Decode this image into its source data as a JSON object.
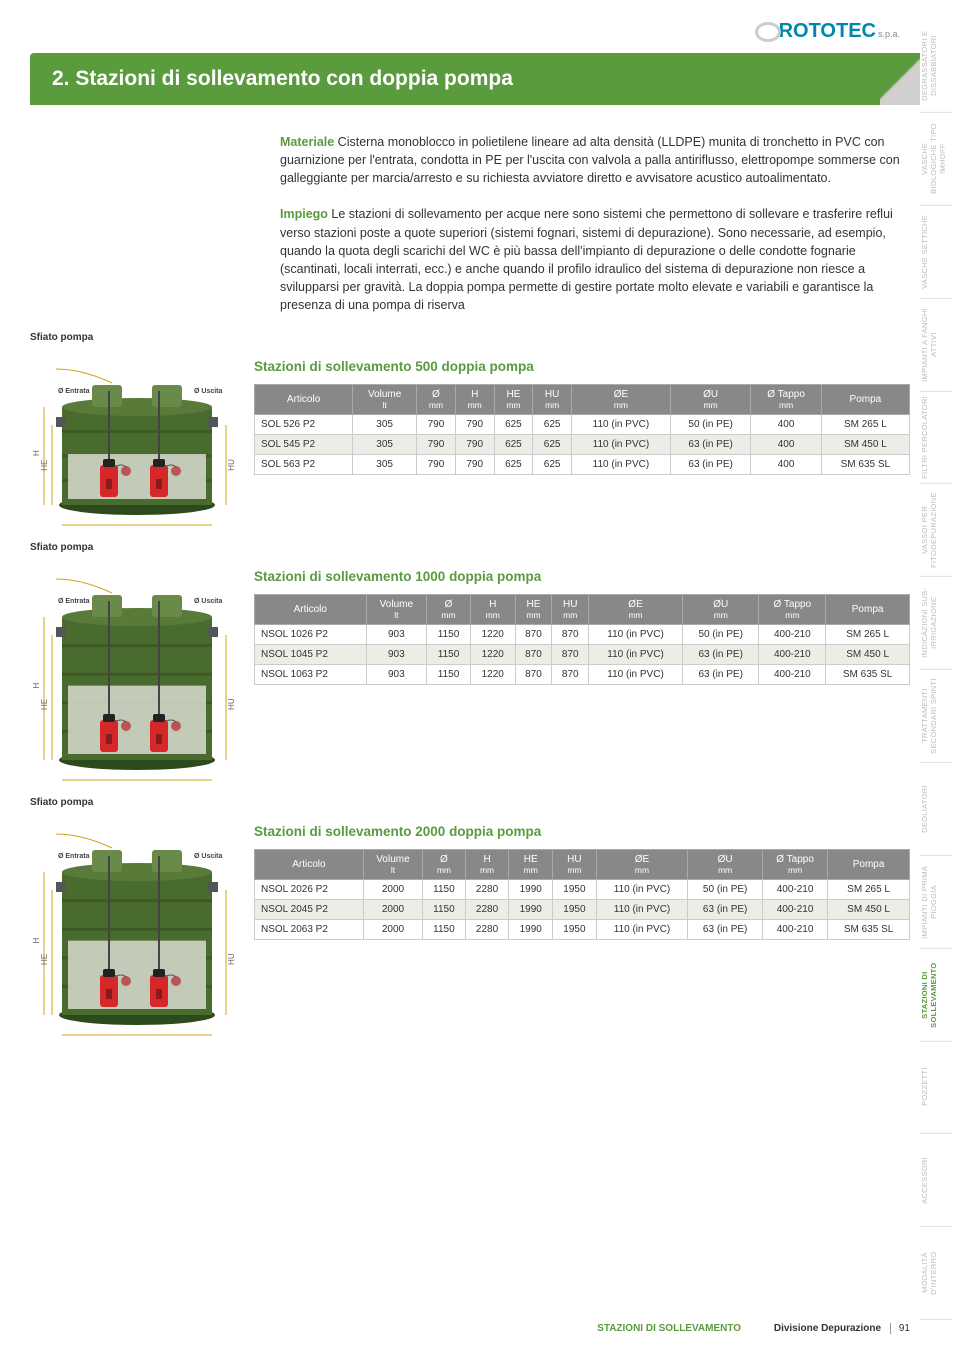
{
  "logo": {
    "brand": "ROTOTEC",
    "suffix": "s.p.a."
  },
  "title": "2. Stazioni di sollevamento con doppia pompa",
  "para1_label": "Materiale",
  "para1": " Cisterna monoblocco in polietilene lineare ad alta densità (LLDPE) munita di tronchetto in PVC con guarnizione per l'entrata, condotta in PE per l'uscita con valvola a palla antiriflusso, elettropompe sommerse con galleggiante per marcia/arresto e su richiesta avviatore diretto e avvisatore acustico autoalimentato.",
  "para2_label": "Impiego",
  "para2": " Le stazioni di sollevamento per acque nere sono sistemi che permettono di sollevare e trasferire reflui verso stazioni poste a quote superiori (sistemi fognari, sistemi di depurazione). Sono necessarie, ad esempio, quando la quota degli scarichi del WC è più bassa dell'impianto di depurazione o delle condotte fognarie (scantinati, locali interrati, ecc.) e anche quando il profilo idraulico del sistema di depurazione non riesce a svilupparsi per gravità. La doppia pompa permette di gestire portate molto elevate e variabili e garantisce la presenza di una pompa di riserva",
  "sfiato_label": "Sfiato pompa",
  "diagram_labels": {
    "entrata": "Ø\nEntrata",
    "uscita": "Ø\nUscita",
    "h": "H",
    "he": "HE",
    "hu": "HU",
    "o": "Ø"
  },
  "columns": [
    {
      "h": "Articolo",
      "s": ""
    },
    {
      "h": "Volume",
      "s": "lt"
    },
    {
      "h": "Ø",
      "s": "mm"
    },
    {
      "h": "H",
      "s": "mm"
    },
    {
      "h": "HE",
      "s": "mm"
    },
    {
      "h": "HU",
      "s": "mm"
    },
    {
      "h": "ØE",
      "s": "mm"
    },
    {
      "h": "ØU",
      "s": "mm"
    },
    {
      "h": "Ø Tappo",
      "s": "mm"
    },
    {
      "h": "Pompa",
      "s": ""
    }
  ],
  "tables": [
    {
      "title": "Stazioni di sollevamento 500 doppia pompa",
      "aspect": 0.65,
      "rows": [
        [
          "SOL 526 P2",
          "305",
          "790",
          "790",
          "625",
          "625",
          "110 (in PVC)",
          "50 (in PE)",
          "400",
          "SM 265 L"
        ],
        [
          "SOL 545 P2",
          "305",
          "790",
          "790",
          "625",
          "625",
          "110 (in PVC)",
          "63 (in PE)",
          "400",
          "SM 450 L"
        ],
        [
          "SOL 563 P2",
          "305",
          "790",
          "790",
          "625",
          "625",
          "110 (in PVC)",
          "63 (in PE)",
          "400",
          "SM 635 SL"
        ]
      ]
    },
    {
      "title": "Stazioni di sollevamento 1000 doppia pompa",
      "aspect": 0.95,
      "rows": [
        [
          "NSOL 1026 P2",
          "903",
          "1150",
          "1220",
          "870",
          "870",
          "110 (in PVC)",
          "50 (in PE)",
          "400-210",
          "SM 265 L"
        ],
        [
          "NSOL 1045 P2",
          "903",
          "1150",
          "1220",
          "870",
          "870",
          "110 (in PVC)",
          "63 (in PE)",
          "400-210",
          "SM 450 L"
        ],
        [
          "NSOL 1063 P2",
          "903",
          "1150",
          "1220",
          "870",
          "870",
          "110 (in PVC)",
          "63 (in PE)",
          "400-210",
          "SM 635 SL"
        ]
      ]
    },
    {
      "title": "Stazioni di sollevamento 2000 doppia pompa",
      "aspect": 0.95,
      "rows": [
        [
          "NSOL 2026 P2",
          "2000",
          "1150",
          "2280",
          "1990",
          "1950",
          "110 (in PVC)",
          "50 (in PE)",
          "400-210",
          "SM 265 L"
        ],
        [
          "NSOL 2045 P2",
          "2000",
          "1150",
          "2280",
          "1990",
          "1950",
          "110 (in PVC)",
          "63 (in PE)",
          "400-210",
          "SM 450 L"
        ],
        [
          "NSOL 2063 P2",
          "2000",
          "1150",
          "2280",
          "1990",
          "1950",
          "110 (in PVC)",
          "63 (in PE)",
          "400-210",
          "SM 635 SL"
        ]
      ]
    }
  ],
  "sidebar": [
    "DEGRASSATORI E DISSABBIATORI",
    "VASCHE BIOLOGICHE TIPO IMHOFF",
    "VASCHE SETTICHE",
    "IMPIANTI A FANGHI ATTIVI",
    "FILTRI PERCOLATORI",
    "VASSOI PER FITODEPURAZIONE",
    "INDICAZIONI SUB-IRRIGAZIONE",
    "TRATTAMENTI SECONDARI SPINTI",
    "DEOLIATORI",
    "IMPIANTI DI PRIMA PIOGGIA",
    "STAZIONI DI SOLLEVAMENTO",
    "POZZETTI",
    "ACCESSORI",
    "MODALITÀ D'INTERRO"
  ],
  "sidebar_active_index": 10,
  "footer": {
    "category": "STAZIONI DI SOLLEVAMENTO",
    "division": "Divisione Depurazione",
    "page": "91"
  },
  "colors": {
    "accent": "#5a9b3e",
    "tank_dark": "#2d4a1e",
    "tank_mid": "#4a6b2e",
    "tank_rib": "#3d5a26",
    "tank_light": "#6a8a4a",
    "tank_top": "#5a7a3a",
    "water": "#d8dcd0",
    "pump_red": "#d62828",
    "pump_dark": "#8b1a1a",
    "pump_top": "#222",
    "float": "#b55",
    "measure": "#d4a017",
    "th_bg": "#888888",
    "row_alt": "#eaeee7"
  }
}
